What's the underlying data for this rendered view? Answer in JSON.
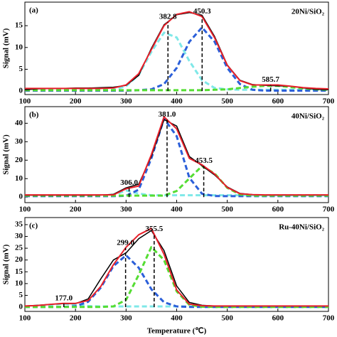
{
  "chart_data": [
    {
      "type": "line",
      "panel_label": "(a)",
      "title": "20Ni/SiO₂",
      "ylabel": "Signal (mV)",
      "x": [
        100,
        125,
        150,
        175,
        200,
        225,
        250,
        275,
        300,
        325,
        350,
        375,
        400,
        425,
        450,
        475,
        500,
        525,
        550,
        575,
        600,
        625,
        650,
        675,
        700
      ],
      "series": [
        {
          "color": "#000000",
          "dashed": false,
          "values": [
            0.3,
            0.5,
            0.6,
            0.6,
            0.7,
            0.7,
            0.8,
            0.9,
            1.3,
            3.6,
            9.8,
            15.2,
            17.5,
            18.0,
            17.4,
            12.5,
            6.0,
            2.5,
            1.5,
            1.3,
            1.2,
            1.1,
            0.7,
            0.4,
            0.3
          ]
        },
        {
          "color": "#e8202a",
          "dashed": false,
          "values": [
            0.6,
            0.6,
            0.6,
            0.6,
            0.6,
            0.6,
            0.6,
            0.7,
            1.4,
            4.0,
            9.5,
            15.0,
            17.6,
            18.2,
            17.1,
            12.2,
            5.9,
            2.4,
            1.4,
            1.4,
            1.4,
            1.1,
            0.8,
            0.6,
            0.5
          ]
        },
        {
          "color": "#7fe8e8",
          "dashed": true,
          "values": [
            0.3,
            0.3,
            0.3,
            0.3,
            0.3,
            0.3,
            0.3,
            0.3,
            1.1,
            3.7,
            9.0,
            13.4,
            12.3,
            6.9,
            2.5,
            0.7,
            0.4,
            0.3,
            0.3,
            0.3,
            0.3,
            0.3,
            0.3,
            0.3,
            0.3
          ]
        },
        {
          "color": "#2b5fd9",
          "dashed": true,
          "values": [
            0.1,
            0.1,
            0.1,
            0.1,
            0.1,
            0.1,
            0.1,
            0.1,
            0.1,
            0.2,
            0.4,
            1.6,
            5.3,
            11.3,
            14.6,
            11.3,
            5.3,
            1.6,
            0.3,
            0.1,
            0.1,
            0.1,
            0.1,
            0.1,
            0.1
          ]
        },
        {
          "color": "#55dd33",
          "dashed": true,
          "values": [
            0.2,
            0.2,
            0.2,
            0.2,
            0.2,
            0.2,
            0.2,
            0.2,
            0.2,
            0.2,
            0.2,
            0.2,
            0.2,
            0.2,
            0.2,
            0.3,
            0.4,
            0.7,
            1.0,
            1.2,
            1.2,
            0.9,
            0.6,
            0.4,
            0.3
          ]
        }
      ],
      "peaks": [
        382.8,
        450.3,
        585.7
      ],
      "xlim": [
        100,
        700
      ],
      "xticks": [
        100,
        200,
        300,
        400,
        500,
        600,
        700
      ],
      "ylim": [
        -0.8,
        20.4
      ],
      "yticks": [
        0,
        5,
        10,
        15
      ]
    },
    {
      "type": "line",
      "panel_label": "(b)",
      "title": "40Ni/SiO₂",
      "ylabel": "Signal (mV)",
      "x": [
        100,
        125,
        150,
        175,
        200,
        225,
        250,
        275,
        300,
        325,
        350,
        375,
        400,
        425,
        450,
        475,
        500,
        525,
        550,
        575,
        600,
        625,
        650,
        675,
        700
      ],
      "series": [
        {
          "color": "#000000",
          "dashed": false,
          "values": [
            1.0,
            1.0,
            1.0,
            1.0,
            1.0,
            1.0,
            1.1,
            1.5,
            5.0,
            7.0,
            22.0,
            42.0,
            38.5,
            22.0,
            17.0,
            12.0,
            5.5,
            2.0,
            1.3,
            1.1,
            1.1,
            1.1,
            1.1,
            1.1,
            1.1
          ]
        },
        {
          "color": "#e8202a",
          "dashed": false,
          "values": [
            1.2,
            1.2,
            1.2,
            1.2,
            1.2,
            1.2,
            1.2,
            1.2,
            4.5,
            6.0,
            23.0,
            43.5,
            37.0,
            21.0,
            17.5,
            12.5,
            5.2,
            1.8,
            1.3,
            1.2,
            1.2,
            1.2,
            1.2,
            1.2,
            1.2
          ]
        },
        {
          "color": "#7fe8e8",
          "dashed": true,
          "values": [
            1.0,
            1.0,
            1.0,
            1.0,
            1.0,
            1.0,
            1.0,
            1.0,
            3.6,
            1.9,
            1.0,
            1.0,
            1.0,
            1.0,
            1.0,
            1.0,
            1.0,
            1.0,
            1.0,
            1.0,
            1.0,
            1.0,
            1.0,
            1.0,
            1.0
          ]
        },
        {
          "color": "#2b5fd9",
          "dashed": true,
          "values": [
            0.5,
            0.5,
            0.5,
            0.5,
            0.5,
            0.5,
            0.5,
            0.5,
            0.7,
            4.0,
            21.0,
            42.5,
            33.0,
            10.5,
            1.8,
            0.6,
            0.5,
            0.5,
            0.5,
            0.5,
            0.5,
            0.5,
            0.5,
            0.5,
            0.5
          ]
        },
        {
          "color": "#55dd33",
          "dashed": true,
          "values": [
            0.8,
            0.8,
            0.8,
            0.8,
            0.8,
            0.8,
            0.8,
            0.8,
            0.8,
            0.8,
            0.8,
            0.8,
            3.3,
            10.1,
            16.8,
            12.8,
            5.0,
            1.4,
            0.8,
            0.8,
            0.8,
            0.8,
            0.8,
            0.8,
            0.8
          ]
        }
      ],
      "peaks": [
        {
          "value": 306,
          "label": "306.0"
        },
        {
          "value": 381,
          "label": "381.0"
        },
        453.5
      ],
      "xlim": [
        100,
        700
      ],
      "xticks": [
        100,
        200,
        300,
        400,
        500,
        600,
        700
      ],
      "ylim": [
        -3,
        49
      ],
      "yticks": [
        0,
        10,
        20,
        30,
        40
      ]
    },
    {
      "type": "line",
      "panel_label": "(c)",
      "title": "Ru-40Ni/SiO₂",
      "ylabel": "Signal (mV)",
      "xlabel": "Temperature (℃)",
      "x": [
        100,
        125,
        150,
        175,
        200,
        225,
        250,
        275,
        300,
        325,
        350,
        375,
        400,
        425,
        450,
        475,
        500,
        525,
        550,
        575,
        600,
        625,
        650,
        675,
        700
      ],
      "series": [
        {
          "color": "#000000",
          "dashed": false,
          "values": [
            0.5,
            0.8,
            1.2,
            1.5,
            1.5,
            3.5,
            12.0,
            20.0,
            23.0,
            29.0,
            32.5,
            24.0,
            9.0,
            2.0,
            0.8,
            0.5,
            0.5,
            0.5,
            0.5,
            0.5,
            0.5,
            0.5,
            0.5,
            0.5,
            0.5
          ]
        },
        {
          "color": "#e8202a",
          "dashed": false,
          "values": [
            0.5,
            0.7,
            1.2,
            1.6,
            1.6,
            2.8,
            8.8,
            18.0,
            25.4,
            30.7,
            33.4,
            22.4,
            7.3,
            1.3,
            0.6,
            0.5,
            0.5,
            0.5,
            0.5,
            0.5,
            0.5,
            0.5,
            0.5,
            0.5,
            0.5
          ]
        },
        {
          "color": "#7fe8e8",
          "dashed": true,
          "values": [
            0.3,
            0.4,
            1.0,
            1.5,
            1.2,
            0.5,
            0.3,
            0.3,
            0.3,
            0.3,
            0.3,
            0.3,
            0.3,
            0.3,
            0.3,
            0.3,
            0.3,
            0.3,
            0.3,
            0.3,
            0.3,
            0.3,
            0.3,
            0.3,
            0.3
          ]
        },
        {
          "color": "#2b5fd9",
          "dashed": true,
          "values": [
            0.1,
            0.1,
            0.1,
            0.1,
            0.4,
            2.3,
            8.3,
            17.4,
            22.0,
            16.7,
            7.6,
            2.1,
            0.3,
            0.1,
            0.1,
            0.1,
            0.1,
            0.1,
            0.1,
            0.1,
            0.1,
            0.1,
            0.1,
            0.1,
            0.1
          ]
        },
        {
          "color": "#55dd33",
          "dashed": true,
          "values": [
            0.1,
            0.1,
            0.1,
            0.1,
            0.1,
            0.1,
            0.1,
            0.3,
            3.1,
            13.7,
            25.5,
            20.0,
            6.7,
            1.0,
            0.2,
            0.1,
            0.1,
            0.1,
            0.1,
            0.1,
            0.1,
            0.1,
            0.1,
            0.1,
            0.1
          ]
        }
      ],
      "peaks": [
        {
          "value": 177,
          "label": "177.0"
        },
        {
          "value": 299,
          "label": "299.0"
        },
        355.5
      ],
      "xlim": [
        100,
        700
      ],
      "xticks": [
        100,
        200,
        300,
        400,
        500,
        600,
        700
      ],
      "ylim": [
        -1.8,
        38
      ],
      "yticks": [
        0,
        5,
        10,
        15,
        20,
        25,
        30,
        35
      ]
    }
  ]
}
